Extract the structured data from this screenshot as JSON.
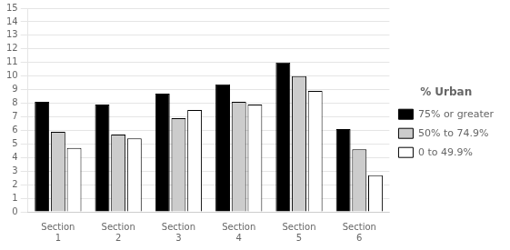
{
  "chart_data": {
    "type": "bar",
    "categories": [
      "Section\n1",
      "Section\n2",
      "Section\n3",
      "Section\n4",
      "Section\n5",
      "Section\n6"
    ],
    "series": [
      {
        "name": "75% or greater",
        "color": "#000000",
        "values": [
          8.1,
          7.9,
          8.7,
          9.4,
          11.0,
          6.1
        ]
      },
      {
        "name": "50% to 74.9%",
        "color": "#cccccc",
        "values": [
          5.9,
          5.7,
          6.9,
          8.1,
          10.0,
          4.6
        ]
      },
      {
        "name": "0 to 49.9%",
        "color": "#ffffff",
        "values": [
          4.7,
          5.4,
          7.5,
          7.9,
          8.9,
          2.7
        ]
      }
    ],
    "legend_title": "% Urban",
    "legend": "right",
    "ylim": [
      0,
      15
    ],
    "yticks": [
      0,
      1,
      2,
      3,
      4,
      5,
      6,
      7,
      8,
      9,
      10,
      11,
      12,
      13,
      14,
      15
    ],
    "grid": true
  }
}
